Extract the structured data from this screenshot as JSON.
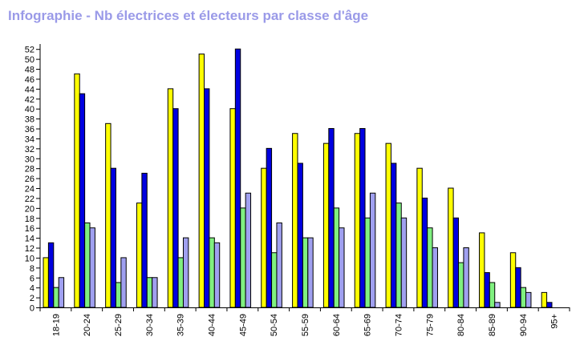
{
  "title": "Infographie - Nb électrices et électeurs par classe d'âge",
  "chart_data": {
    "type": "bar",
    "title": "Infographie - Nb électrices et électeurs par classe d'âge",
    "xlabel": "",
    "ylabel": "",
    "ylim": [
      0,
      53
    ],
    "yticks": [
      0,
      2,
      4,
      6,
      8,
      10,
      12,
      14,
      16,
      18,
      20,
      22,
      24,
      26,
      28,
      30,
      32,
      34,
      36,
      38,
      40,
      42,
      44,
      46,
      48,
      50,
      52
    ],
    "grid": false,
    "legend": "none",
    "categories": [
      "18-19",
      "20-24",
      "25-29",
      "30-34",
      "35-39",
      "40-44",
      "45-49",
      "50-54",
      "55-59",
      "60-64",
      "65-69",
      "70-74",
      "75-79",
      "80-84",
      "85-89",
      "90-94",
      "95+"
    ],
    "series": [
      {
        "color": "#ffff00",
        "values": [
          10,
          47,
          37,
          21,
          44,
          51,
          40,
          28,
          35,
          33,
          35,
          33,
          28,
          24,
          15,
          11,
          3
        ]
      },
      {
        "color": "#0000e0",
        "values": [
          13,
          43,
          28,
          27,
          40,
          44,
          52,
          32,
          29,
          36,
          36,
          29,
          22,
          18,
          7,
          8,
          1
        ]
      },
      {
        "color": "#80f080",
        "values": [
          4,
          17,
          5,
          6,
          10,
          14,
          20,
          11,
          14,
          20,
          18,
          21,
          16,
          9,
          5,
          4,
          0
        ]
      },
      {
        "color": "#a0a0f0",
        "values": [
          6,
          16,
          10,
          6,
          14,
          13,
          23,
          17,
          14,
          16,
          23,
          18,
          12,
          12,
          1,
          3,
          0
        ]
      }
    ]
  }
}
